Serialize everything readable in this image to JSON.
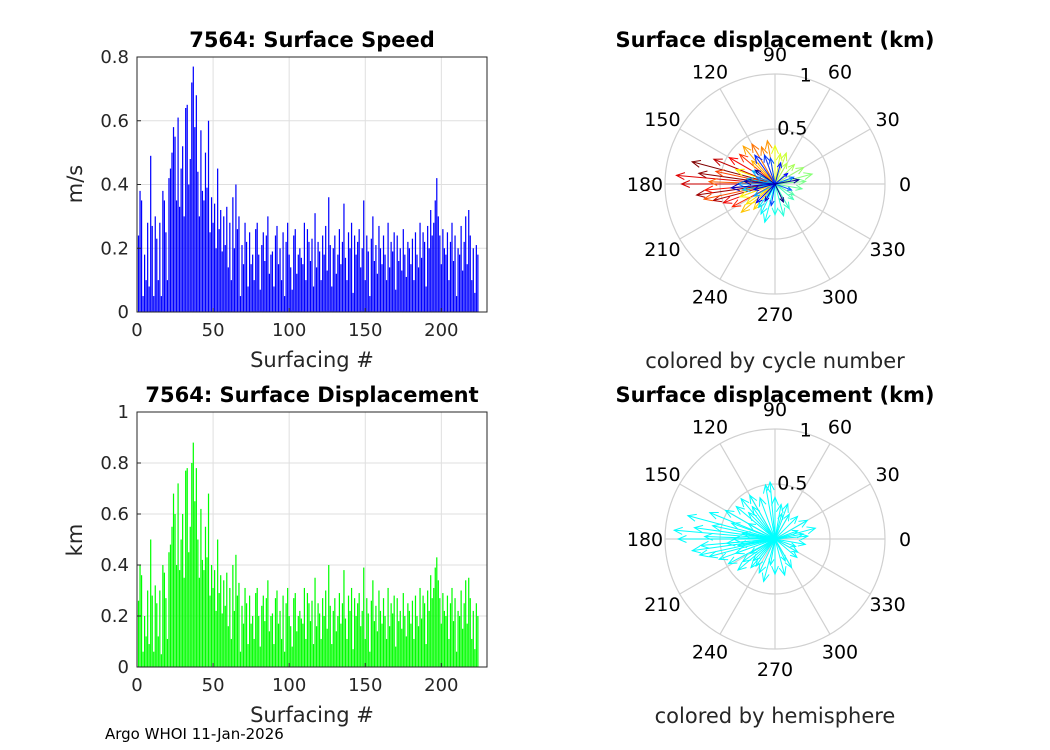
{
  "figure": {
    "credit": "Argo WHOI 11-Jan-2026"
  },
  "chart_data": [
    {
      "type": "bar",
      "title": "7564: Surface Speed",
      "xlabel": "Surfacing #",
      "ylabel": "m/s",
      "xlim": [
        0,
        230
      ],
      "ylim": [
        0,
        0.8
      ],
      "xticks": [
        "0",
        "50",
        "100",
        "150",
        "200"
      ],
      "yticks": [
        "0",
        "0.2",
        "0.4",
        "0.6",
        "0.8"
      ],
      "bar_color": "#0000ff",
      "grid": true,
      "values": [
        0.24,
        0.38,
        0.35,
        0.05,
        0.18,
        0.1,
        0.28,
        0.08,
        0.49,
        0.27,
        0.05,
        0.3,
        0.23,
        0.1,
        0.28,
        0.05,
        0.38,
        0.35,
        0.25,
        0.1,
        0.42,
        0.45,
        0.5,
        0.58,
        0.55,
        0.35,
        0.61,
        0.33,
        0.45,
        0.52,
        0.3,
        0.64,
        0.65,
        0.4,
        0.48,
        0.72,
        0.77,
        0.58,
        0.68,
        0.44,
        0.3,
        0.57,
        0.38,
        0.35,
        0.5,
        0.39,
        0.6,
        0.25,
        0.36,
        0.28,
        0.34,
        0.2,
        0.45,
        0.26,
        0.32,
        0.19,
        0.3,
        0.21,
        0.33,
        0.14,
        0.28,
        0.1,
        0.36,
        0.2,
        0.4,
        0.26,
        0.3,
        0.05,
        0.21,
        0.15,
        0.28,
        0.22,
        0.08,
        0.25,
        0.15,
        0.18,
        0.1,
        0.26,
        0.28,
        0.18,
        0.07,
        0.21,
        0.25,
        0.16,
        0.24,
        0.3,
        0.12,
        0.18,
        0.19,
        0.08,
        0.24,
        0.27,
        0.15,
        0.2,
        0.1,
        0.25,
        0.05,
        0.22,
        0.28,
        0.18,
        0.14,
        0.07,
        0.24,
        0.26,
        0.12,
        0.18,
        0.2,
        0.17,
        0.15,
        0.28,
        0.1,
        0.26,
        0.22,
        0.16,
        0.23,
        0.08,
        0.31,
        0.14,
        0.22,
        0.19,
        0.1,
        0.24,
        0.18,
        0.27,
        0.13,
        0.36,
        0.21,
        0.08,
        0.2,
        0.24,
        0.12,
        0.18,
        0.26,
        0.15,
        0.22,
        0.34,
        0.17,
        0.1,
        0.25,
        0.2,
        0.28,
        0.06,
        0.24,
        0.18,
        0.22,
        0.26,
        0.14,
        0.2,
        0.35,
        0.1,
        0.24,
        0.19,
        0.05,
        0.23,
        0.3,
        0.16,
        0.21,
        0.12,
        0.27,
        0.2,
        0.15,
        0.24,
        0.18,
        0.1,
        0.28,
        0.14,
        0.22,
        0.19,
        0.25,
        0.07,
        0.24,
        0.16,
        0.2,
        0.13,
        0.26,
        0.18,
        0.11,
        0.22,
        0.2,
        0.15,
        0.23,
        0.1,
        0.25,
        0.18,
        0.14,
        0.28,
        0.17,
        0.25,
        0.22,
        0.08,
        0.27,
        0.2,
        0.32,
        0.24,
        0.28,
        0.35,
        0.42,
        0.3,
        0.24,
        0.15,
        0.26,
        0.2,
        0.18,
        0.25,
        0.1,
        0.22,
        0.28,
        0.16,
        0.24,
        0.05,
        0.2,
        0.18,
        0.27,
        0.13,
        0.22,
        0.3,
        0.15,
        0.32,
        0.24,
        0.1,
        0.2,
        0.06,
        0.21,
        0.18
      ]
    },
    {
      "type": "bar",
      "title": "7564: Surface Displacement",
      "xlabel": "Surfacing #",
      "ylabel": "km",
      "xlim": [
        0,
        230
      ],
      "ylim": [
        0,
        1
      ],
      "xticks": [
        "0",
        "50",
        "100",
        "150",
        "200"
      ],
      "yticks": [
        "0",
        "0.2",
        "0.4",
        "0.6",
        "0.8",
        "1"
      ],
      "bar_color": "#00ff00",
      "grid": true,
      "values": [
        0.26,
        0.4,
        0.36,
        0.06,
        0.2,
        0.12,
        0.3,
        0.09,
        0.5,
        0.28,
        0.06,
        0.32,
        0.25,
        0.12,
        0.3,
        0.05,
        0.4,
        0.37,
        0.27,
        0.11,
        0.45,
        0.48,
        0.55,
        0.68,
        0.6,
        0.4,
        0.72,
        0.38,
        0.5,
        0.6,
        0.35,
        0.77,
        0.78,
        0.45,
        0.55,
        0.8,
        0.88,
        0.65,
        0.78,
        0.5,
        0.35,
        0.62,
        0.42,
        0.38,
        0.55,
        0.43,
        0.68,
        0.28,
        0.4,
        0.31,
        0.38,
        0.22,
        0.5,
        0.29,
        0.36,
        0.21,
        0.34,
        0.24,
        0.37,
        0.16,
        0.31,
        0.11,
        0.4,
        0.22,
        0.44,
        0.28,
        0.33,
        0.06,
        0.24,
        0.17,
        0.31,
        0.25,
        0.09,
        0.28,
        0.17,
        0.2,
        0.11,
        0.29,
        0.31,
        0.2,
        0.08,
        0.24,
        0.28,
        0.18,
        0.27,
        0.34,
        0.14,
        0.2,
        0.21,
        0.09,
        0.27,
        0.3,
        0.17,
        0.22,
        0.11,
        0.28,
        0.06,
        0.25,
        0.31,
        0.2,
        0.16,
        0.08,
        0.27,
        0.29,
        0.14,
        0.2,
        0.22,
        0.19,
        0.17,
        0.31,
        0.11,
        0.29,
        0.25,
        0.18,
        0.26,
        0.09,
        0.35,
        0.16,
        0.25,
        0.21,
        0.11,
        0.27,
        0.2,
        0.3,
        0.15,
        0.4,
        0.24,
        0.09,
        0.22,
        0.27,
        0.14,
        0.2,
        0.29,
        0.17,
        0.25,
        0.38,
        0.19,
        0.11,
        0.28,
        0.22,
        0.31,
        0.07,
        0.27,
        0.2,
        0.25,
        0.29,
        0.16,
        0.22,
        0.39,
        0.11,
        0.27,
        0.21,
        0.06,
        0.26,
        0.34,
        0.18,
        0.24,
        0.14,
        0.3,
        0.22,
        0.17,
        0.27,
        0.2,
        0.11,
        0.31,
        0.16,
        0.25,
        0.21,
        0.28,
        0.08,
        0.27,
        0.18,
        0.22,
        0.15,
        0.29,
        0.2,
        0.12,
        0.25,
        0.22,
        0.17,
        0.26,
        0.11,
        0.28,
        0.2,
        0.16,
        0.31,
        0.19,
        0.28,
        0.25,
        0.09,
        0.3,
        0.22,
        0.36,
        0.27,
        0.31,
        0.39,
        0.43,
        0.34,
        0.27,
        0.17,
        0.29,
        0.22,
        0.2,
        0.28,
        0.11,
        0.25,
        0.31,
        0.18,
        0.27,
        0.06,
        0.22,
        0.2,
        0.3,
        0.15,
        0.25,
        0.34,
        0.17,
        0.35,
        0.27,
        0.11,
        0.22,
        0.07,
        0.25,
        0.2
      ]
    },
    {
      "type": "polar-quiver",
      "title": "Surface displacement (km)",
      "subtitle": "colored by cycle number",
      "rlim": [
        0,
        1
      ],
      "rticks": [
        "0.5",
        "1"
      ],
      "angle_ticks": [
        "0",
        "30",
        "60",
        "90",
        "120",
        "150",
        "180",
        "210",
        "240",
        "270",
        "300",
        "330"
      ],
      "colormap": "jet",
      "arrows": [
        {
          "angle": 165,
          "r": 0.78
        },
        {
          "angle": 172,
          "r": 0.7
        },
        {
          "angle": 188,
          "r": 0.72
        },
        {
          "angle": 195,
          "r": 0.58
        },
        {
          "angle": 158,
          "r": 0.6
        },
        {
          "angle": 180,
          "r": 0.85
        },
        {
          "angle": 175,
          "r": 0.9
        },
        {
          "angle": 200,
          "r": 0.5
        },
        {
          "angle": 150,
          "r": 0.48
        },
        {
          "angle": 185,
          "r": 0.64
        },
        {
          "angle": 208,
          "r": 0.44
        },
        {
          "angle": 140,
          "r": 0.42
        },
        {
          "angle": 168,
          "r": 0.55
        },
        {
          "angle": 192,
          "r": 0.66
        },
        {
          "angle": 178,
          "r": 0.6
        },
        {
          "angle": 120,
          "r": 0.42
        },
        {
          "angle": 110,
          "r": 0.36
        },
        {
          "angle": 100,
          "r": 0.4
        },
        {
          "angle": 130,
          "r": 0.45
        },
        {
          "angle": 135,
          "r": 0.3
        },
        {
          "angle": 220,
          "r": 0.4
        },
        {
          "angle": 230,
          "r": 0.3
        },
        {
          "angle": 215,
          "r": 0.32
        },
        {
          "angle": 160,
          "r": 0.38
        },
        {
          "angle": 200,
          "r": 0.34
        },
        {
          "angle": 90,
          "r": 0.35
        },
        {
          "angle": 80,
          "r": 0.28
        },
        {
          "angle": 70,
          "r": 0.3
        },
        {
          "angle": 60,
          "r": 0.22
        },
        {
          "angle": 45,
          "r": 0.25
        },
        {
          "angle": 30,
          "r": 0.3
        },
        {
          "angle": 15,
          "r": 0.35
        },
        {
          "angle": 5,
          "r": 0.28
        },
        {
          "angle": 350,
          "r": 0.25
        },
        {
          "angle": 330,
          "r": 0.2
        },
        {
          "angle": 320,
          "r": 0.22
        },
        {
          "angle": 300,
          "r": 0.26
        },
        {
          "angle": 285,
          "r": 0.3
        },
        {
          "angle": 270,
          "r": 0.28
        },
        {
          "angle": 255,
          "r": 0.36
        },
        {
          "angle": 245,
          "r": 0.3
        },
        {
          "angle": 235,
          "r": 0.26
        },
        {
          "angle": 190,
          "r": 0.3
        },
        {
          "angle": 170,
          "r": 0.26
        },
        {
          "angle": 150,
          "r": 0.24
        },
        {
          "angle": 210,
          "r": 0.22
        },
        {
          "angle": 180,
          "r": 0.34
        },
        {
          "angle": 160,
          "r": 0.18
        },
        {
          "angle": 20,
          "r": 0.18
        },
        {
          "angle": 340,
          "r": 0.16
        },
        {
          "angle": 100,
          "r": 0.24
        },
        {
          "angle": 260,
          "r": 0.2
        },
        {
          "angle": 110,
          "r": 0.28
        },
        {
          "angle": 125,
          "r": 0.32
        },
        {
          "angle": 75,
          "r": 0.2
        },
        {
          "angle": 40,
          "r": 0.15
        },
        {
          "angle": 225,
          "r": 0.24
        },
        {
          "angle": 195,
          "r": 0.2
        },
        {
          "angle": 240,
          "r": 0.18
        },
        {
          "angle": 185,
          "r": 0.4
        },
        {
          "angle": 175,
          "r": 0.28
        },
        {
          "angle": 145,
          "r": 0.22
        },
        {
          "angle": 10,
          "r": 0.22
        },
        {
          "angle": 295,
          "r": 0.18
        }
      ]
    },
    {
      "type": "polar-quiver",
      "title": "Surface displacement (km)",
      "subtitle": "colored by hemisphere",
      "rlim": [
        0,
        1
      ],
      "rticks": [
        "0.5",
        "1"
      ],
      "angle_ticks": [
        "0",
        "30",
        "60",
        "90",
        "120",
        "150",
        "180",
        "210",
        "240",
        "270",
        "300",
        "330"
      ],
      "arrow_color": "#00ffff",
      "arrows": [
        {
          "angle": 165,
          "r": 0.82
        },
        {
          "angle": 172,
          "r": 0.74
        },
        {
          "angle": 188,
          "r": 0.76
        },
        {
          "angle": 195,
          "r": 0.62
        },
        {
          "angle": 158,
          "r": 0.64
        },
        {
          "angle": 180,
          "r": 0.88
        },
        {
          "angle": 175,
          "r": 0.92
        },
        {
          "angle": 200,
          "r": 0.54
        },
        {
          "angle": 150,
          "r": 0.52
        },
        {
          "angle": 185,
          "r": 0.68
        },
        {
          "angle": 208,
          "r": 0.48
        },
        {
          "angle": 140,
          "r": 0.46
        },
        {
          "angle": 168,
          "r": 0.58
        },
        {
          "angle": 192,
          "r": 0.7
        },
        {
          "angle": 178,
          "r": 0.64
        },
        {
          "angle": 120,
          "r": 0.46
        },
        {
          "angle": 110,
          "r": 0.4
        },
        {
          "angle": 100,
          "r": 0.5
        },
        {
          "angle": 95,
          "r": 0.52
        },
        {
          "angle": 130,
          "r": 0.48
        },
        {
          "angle": 135,
          "r": 0.34
        },
        {
          "angle": 220,
          "r": 0.44
        },
        {
          "angle": 230,
          "r": 0.34
        },
        {
          "angle": 215,
          "r": 0.36
        },
        {
          "angle": 160,
          "r": 0.42
        },
        {
          "angle": 200,
          "r": 0.38
        },
        {
          "angle": 90,
          "r": 0.38
        },
        {
          "angle": 80,
          "r": 0.32
        },
        {
          "angle": 70,
          "r": 0.34
        },
        {
          "angle": 60,
          "r": 0.26
        },
        {
          "angle": 45,
          "r": 0.29
        },
        {
          "angle": 30,
          "r": 0.34
        },
        {
          "angle": 15,
          "r": 0.38
        },
        {
          "angle": 5,
          "r": 0.3
        },
        {
          "angle": 350,
          "r": 0.28
        },
        {
          "angle": 330,
          "r": 0.24
        },
        {
          "angle": 320,
          "r": 0.26
        },
        {
          "angle": 300,
          "r": 0.3
        },
        {
          "angle": 285,
          "r": 0.34
        },
        {
          "angle": 270,
          "r": 0.32
        },
        {
          "angle": 255,
          "r": 0.4
        },
        {
          "angle": 245,
          "r": 0.34
        },
        {
          "angle": 235,
          "r": 0.3
        },
        {
          "angle": 190,
          "r": 0.34
        },
        {
          "angle": 170,
          "r": 0.3
        },
        {
          "angle": 150,
          "r": 0.28
        },
        {
          "angle": 210,
          "r": 0.26
        },
        {
          "angle": 180,
          "r": 0.38
        },
        {
          "angle": 20,
          "r": 0.22
        },
        {
          "angle": 340,
          "r": 0.2
        },
        {
          "angle": 260,
          "r": 0.24
        },
        {
          "angle": 125,
          "r": 0.36
        },
        {
          "angle": 75,
          "r": 0.24
        },
        {
          "angle": 225,
          "r": 0.28
        },
        {
          "angle": 185,
          "r": 0.44
        },
        {
          "angle": 10,
          "r": 0.26
        },
        {
          "angle": 295,
          "r": 0.22
        }
      ]
    }
  ]
}
